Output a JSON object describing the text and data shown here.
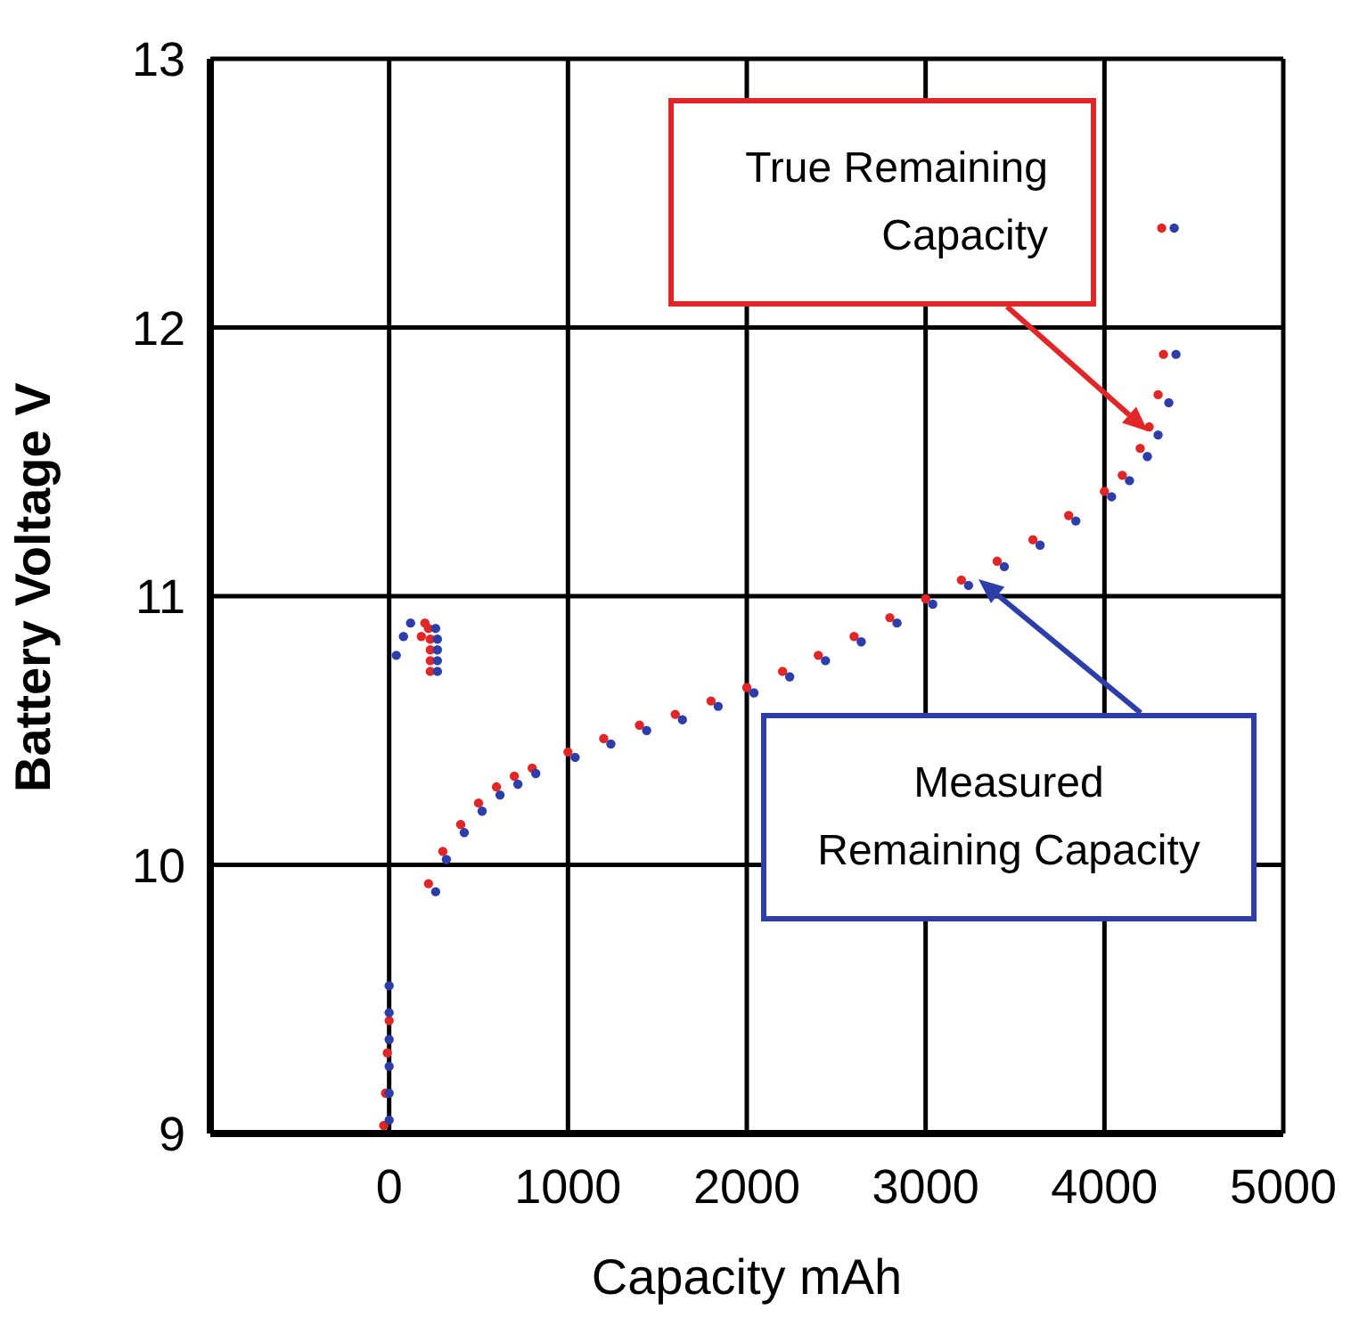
{
  "chart_data": {
    "type": "scatter",
    "xlabel": "Capacity mAh",
    "ylabel": "Battery Voltage V",
    "xlim": [
      -1000,
      5000
    ],
    "ylim": [
      9,
      13
    ],
    "xticks": [
      0,
      1000,
      2000,
      3000,
      4000,
      5000
    ],
    "yticks": [
      9,
      10,
      11,
      12,
      13
    ],
    "grid": true,
    "marker": "circle",
    "legend": false,
    "series": [
      {
        "color": "#e02626",
        "x": [
          -30,
          -20,
          -10,
          0,
          180,
          200,
          220,
          230,
          230,
          230,
          230,
          220,
          300,
          400,
          500,
          600,
          700,
          800,
          1000,
          1200,
          1400,
          1600,
          1800,
          2000,
          2200,
          2400,
          2600,
          2800,
          3000,
          3200,
          3400,
          3600,
          3800,
          4000,
          4100,
          4200,
          4250,
          4300,
          4330,
          4320
        ],
        "values": [
          9.03,
          9.15,
          9.3,
          9.42,
          10.85,
          10.9,
          10.88,
          10.84,
          10.8,
          10.76,
          10.72,
          9.93,
          10.05,
          10.15,
          10.23,
          10.29,
          10.33,
          10.36,
          10.42,
          10.47,
          10.52,
          10.56,
          10.61,
          10.66,
          10.72,
          10.78,
          10.85,
          10.92,
          10.99,
          11.06,
          11.13,
          11.21,
          11.3,
          11.39,
          11.45,
          11.55,
          11.63,
          11.75,
          11.9,
          12.37
        ]
      },
      {
        "color": "#2e3ea8",
        "x": [
          0,
          0,
          0,
          0,
          0,
          0,
          40,
          80,
          120,
          260,
          270,
          270,
          270,
          270,
          260,
          320,
          420,
          520,
          620,
          720,
          820,
          1040,
          1240,
          1440,
          1640,
          1840,
          2040,
          2240,
          2440,
          2640,
          2840,
          3040,
          3240,
          3440,
          3640,
          3840,
          4040,
          4140,
          4240,
          4300,
          4360,
          4400,
          4390
        ],
        "values": [
          9.05,
          9.15,
          9.25,
          9.35,
          9.45,
          9.55,
          10.78,
          10.85,
          10.9,
          10.88,
          10.84,
          10.8,
          10.76,
          10.72,
          9.9,
          10.02,
          10.12,
          10.2,
          10.26,
          10.3,
          10.34,
          10.4,
          10.45,
          10.5,
          10.54,
          10.59,
          10.64,
          10.7,
          10.76,
          10.83,
          10.9,
          10.97,
          11.04,
          11.11,
          11.19,
          11.28,
          11.37,
          11.43,
          11.52,
          11.6,
          11.72,
          11.9,
          12.37
        ]
      }
    ],
    "annotations": [
      "True Remaining Capacity",
      "Measured Remaining Capacity"
    ]
  }
}
